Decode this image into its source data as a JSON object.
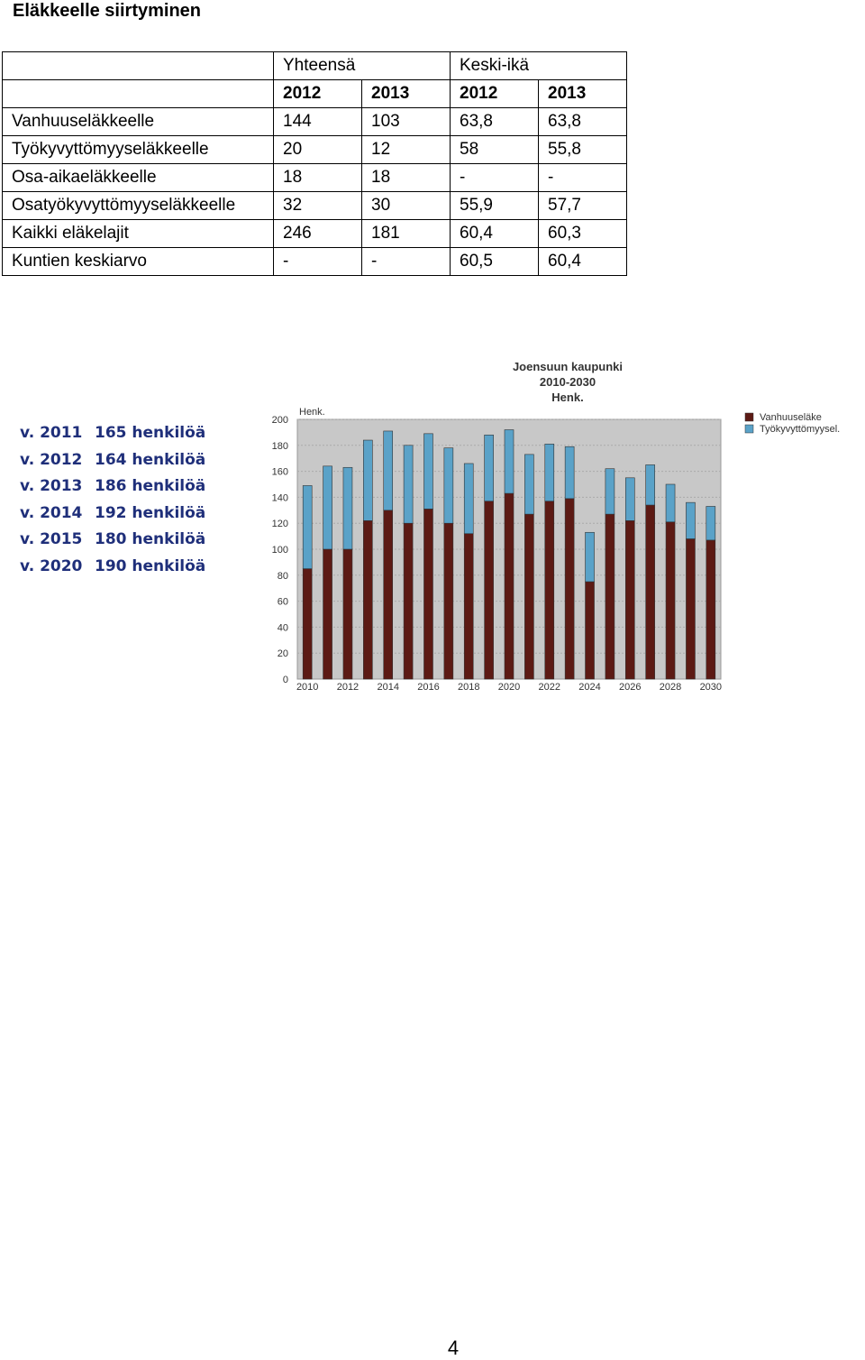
{
  "heading": "Eläkkeelle siirtyminen",
  "table": {
    "group_headers": [
      "Yhteensä",
      "Keski-ikä"
    ],
    "years": [
      "2012",
      "2013",
      "2012",
      "2013"
    ],
    "rows": [
      {
        "label": "Vanhuuseläkkeelle",
        "values": [
          "144",
          "103",
          "63,8",
          "63,8"
        ]
      },
      {
        "label": "Työkyvyttömyyseläkkeelle",
        "values": [
          "20",
          "12",
          "58",
          "55,8"
        ]
      },
      {
        "label": "Osa-aikaeläkkeelle",
        "values": [
          "18",
          "18",
          "-",
          "-"
        ]
      },
      {
        "label": "Osatyökyvyttömyyseläkkeelle",
        "values": [
          "32",
          "30",
          "55,9",
          "57,7"
        ]
      },
      {
        "label": "Kaikki eläkelajit",
        "values": [
          "246",
          "181",
          "60,4",
          "60,3"
        ]
      },
      {
        "label": "Kuntien keskiarvo",
        "values": [
          "-",
          "-",
          "60,5",
          "60,4"
        ]
      }
    ]
  },
  "summary": [
    {
      "year": "v. 2011",
      "text": "165 henkilöä"
    },
    {
      "year": "v. 2012",
      "text": "164 henkilöä"
    },
    {
      "year": "v. 2013",
      "text": "186 henkilöä"
    },
    {
      "year": "v. 2014",
      "text": "192 henkilöä"
    },
    {
      "year": "v. 2015",
      "text": "180 henkilöä"
    },
    {
      "year": "v. 2020",
      "text": "190 henkilöä"
    }
  ],
  "chart_data": {
    "type": "bar",
    "stacked": true,
    "title": [
      "Joensuun kaupunki",
      "2010-2030",
      "Henk."
    ],
    "ylabel": "Henk.",
    "ylim": [
      0,
      200
    ],
    "yticks": [
      0,
      20,
      40,
      60,
      80,
      100,
      120,
      140,
      160,
      180,
      200
    ],
    "x_tick_labels": [
      "2010",
      "2012",
      "2014",
      "2016",
      "2018",
      "2020",
      "2022",
      "2024",
      "2026",
      "2028",
      "2030"
    ],
    "categories": [
      "2010",
      "2011",
      "2012",
      "2013",
      "2014",
      "2015",
      "2016",
      "2017",
      "2018",
      "2019",
      "2020",
      "2021",
      "2022",
      "2023",
      "2024",
      "2025",
      "2026",
      "2027",
      "2028",
      "2029",
      "2030"
    ],
    "series": [
      {
        "name": "Vanhuuseläke",
        "color": "#5c1a14",
        "values": [
          85,
          100,
          100,
          122,
          130,
          120,
          131,
          120,
          112,
          137,
          143,
          127,
          137,
          139,
          75,
          127,
          122,
          134,
          121,
          108,
          107
        ]
      },
      {
        "name": "Työkyvyttömyysel.",
        "color": "#5aa2c8",
        "values": [
          64,
          64,
          63,
          62,
          61,
          60,
          58,
          58,
          54,
          51,
          49,
          46,
          44,
          40,
          38,
          35,
          33,
          31,
          29,
          28,
          26
        ]
      }
    ],
    "legend": "top-right",
    "background": "#c8c8c8",
    "grid": true
  },
  "page_number": "4"
}
